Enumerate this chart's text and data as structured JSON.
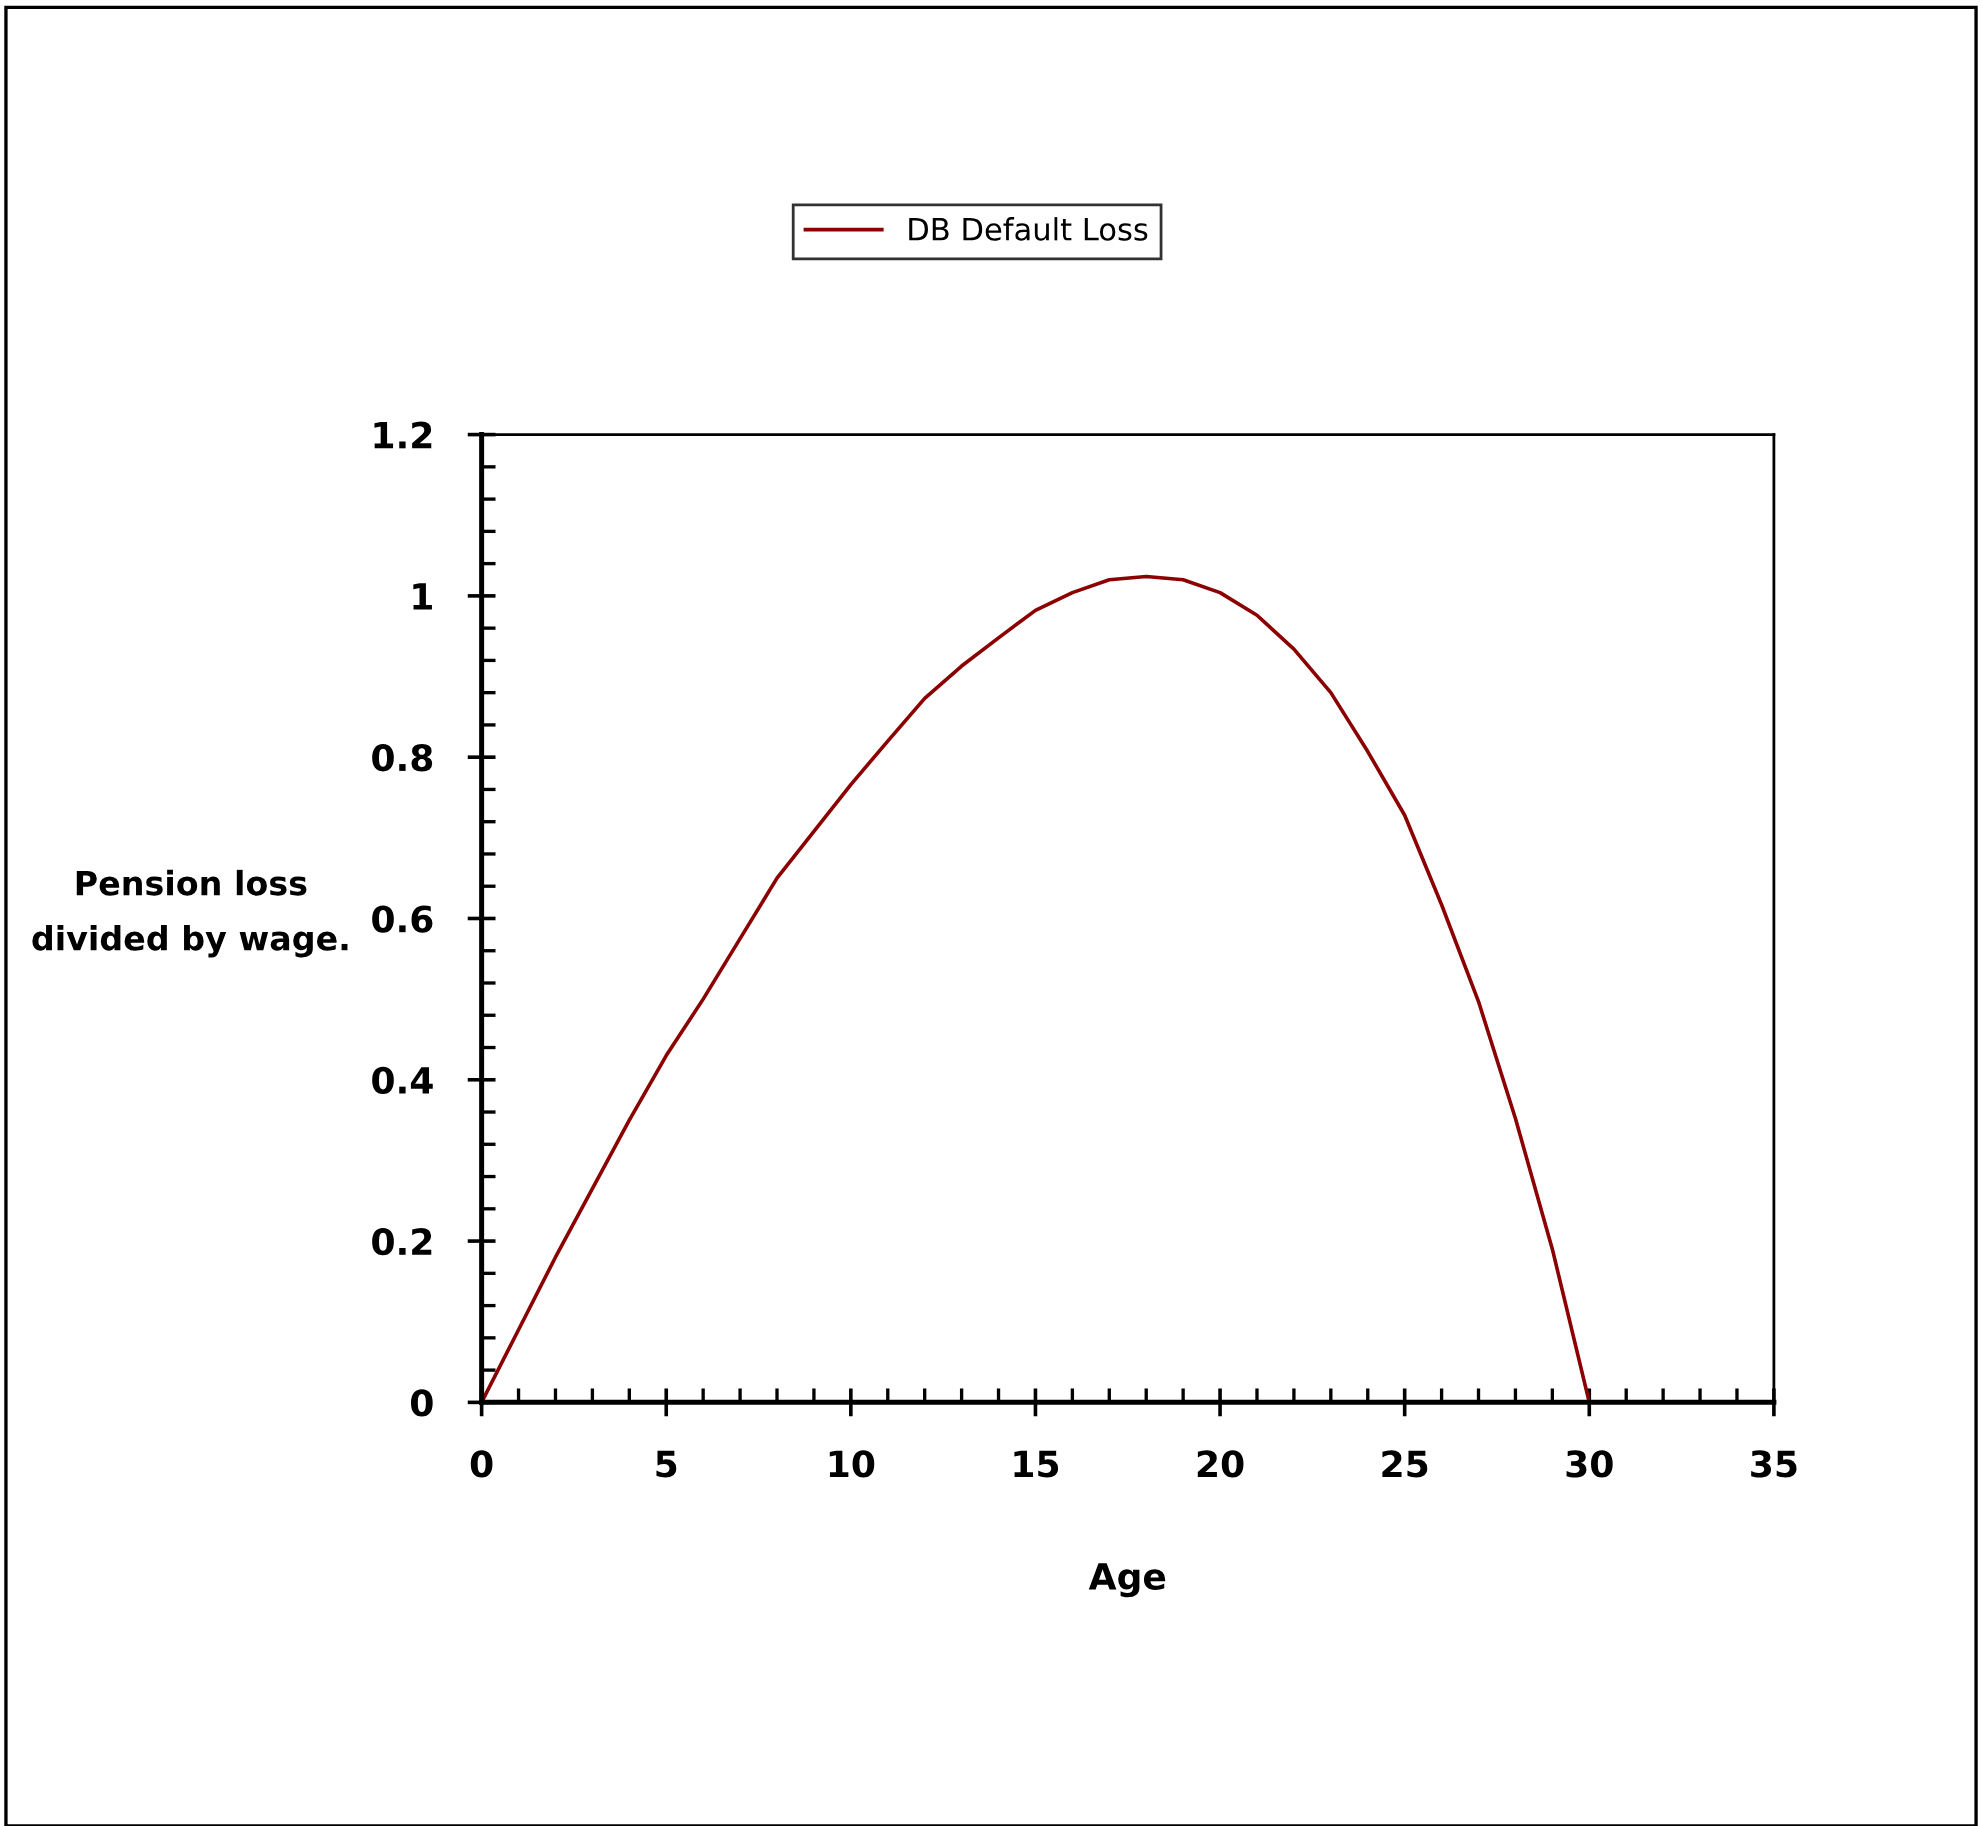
{
  "chart_data": {
    "type": "line",
    "xlabel": "Age",
    "ylabel": "Pension loss\ndivided by wage.",
    "x": [
      0,
      1,
      2,
      3,
      4,
      5,
      6,
      7,
      8,
      9,
      10,
      11,
      12,
      13,
      14,
      15,
      16,
      17,
      18,
      19,
      20,
      21,
      22,
      23,
      24,
      25,
      26,
      27,
      28,
      29,
      30
    ],
    "series": [
      {
        "name": "DB Default Loss",
        "color": "#8b0000",
        "values": [
          0,
          0.09,
          0.18,
          0.265,
          0.35,
          0.43,
          0.5,
          0.575,
          0.65,
          0.708,
          0.766,
          0.82,
          0.873,
          0.913,
          0.948,
          0.982,
          1.004,
          1.02,
          1.024,
          1.02,
          1.004,
          0.976,
          0.934,
          0.88,
          0.807,
          0.728,
          0.617,
          0.497,
          0.352,
          0.19,
          0
        ]
      }
    ],
    "xlim": [
      0,
      35
    ],
    "xticks": [
      0,
      5,
      10,
      15,
      20,
      25,
      30,
      35
    ],
    "ylim": [
      0,
      1.2
    ],
    "yticks": [
      0,
      0.2,
      0.4,
      0.6,
      0.8,
      1,
      1.2
    ],
    "legend": "top",
    "grid": false,
    "marker": "none",
    "line_style": "solid"
  }
}
